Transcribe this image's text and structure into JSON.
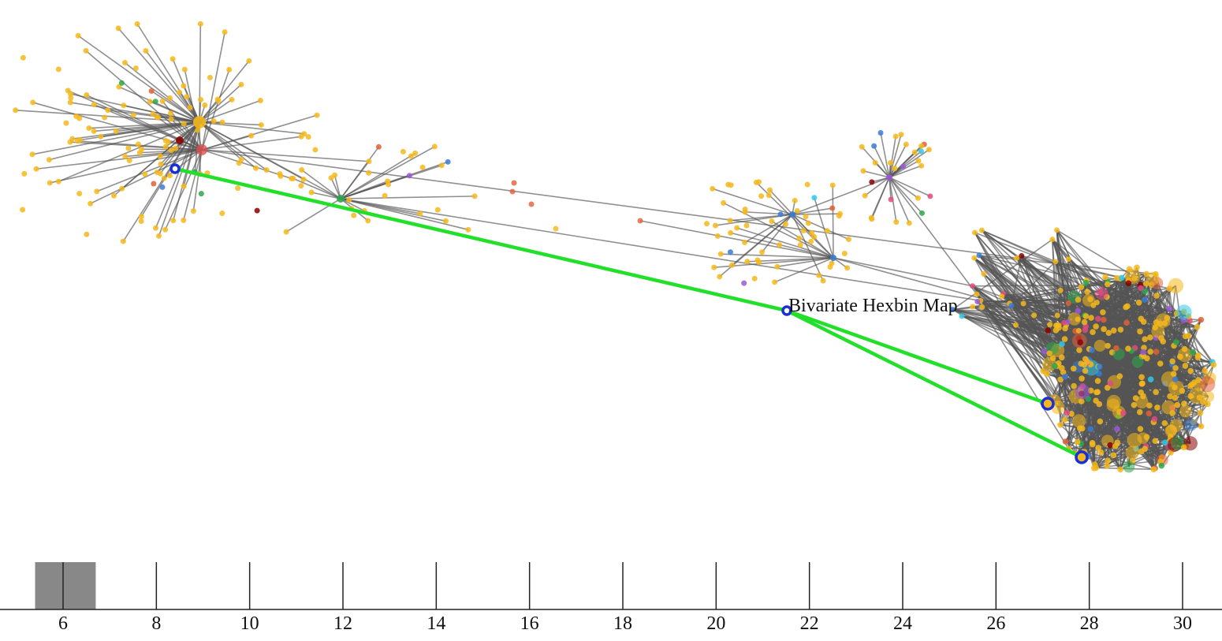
{
  "graph": {
    "hover_label": "Bivariate Hexbin Map",
    "colors": {
      "node_default": "#f5b81c",
      "edge": "#555555",
      "highlight_edge": "#22e02a",
      "highlight_ring": "#1a2fd6",
      "node_palette": [
        "#f5b81c",
        "#e0603a",
        "#9b59d6",
        "#3a7bd5",
        "#2aa84a",
        "#30c8e8",
        "#e04a80",
        "#8b0000"
      ]
    }
  },
  "timeline": {
    "ticks": [
      "6",
      "8",
      "10",
      "12",
      "14",
      "16",
      "18",
      "20",
      "22",
      "24",
      "26",
      "28",
      "30"
    ],
    "brush_range": [
      5.4,
      6.7
    ],
    "colors": {
      "brush": "#888888",
      "axis": "#222222"
    }
  }
}
